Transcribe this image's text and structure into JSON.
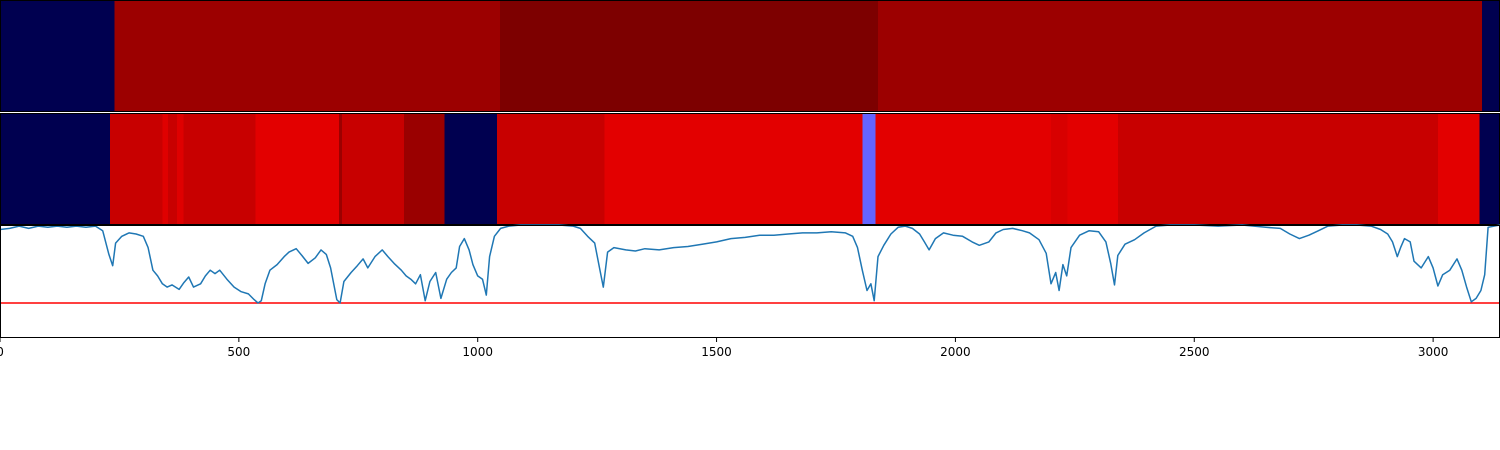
{
  "chart_data": [
    {
      "type": "heatmap",
      "xlim": [
        0,
        3140
      ],
      "segments": [
        {
          "x0": 0,
          "x1": 240,
          "color": "#000050"
        },
        {
          "x0": 240,
          "x1": 1047,
          "color": "#9c0000"
        },
        {
          "x0": 1047,
          "x1": 1838,
          "color": "#7d0000"
        },
        {
          "x0": 1838,
          "x1": 3102,
          "color": "#9c0000"
        },
        {
          "x0": 3102,
          "x1": 3140,
          "color": "#000050"
        }
      ]
    },
    {
      "type": "heatmap",
      "xlim": [
        0,
        3140
      ],
      "segments": [
        {
          "x0": 0,
          "x1": 230,
          "color": "#000050"
        },
        {
          "x0": 230,
          "x1": 340,
          "color": "#c80000"
        },
        {
          "x0": 340,
          "x1": 352,
          "color": "#df0000"
        },
        {
          "x0": 352,
          "x1": 370,
          "color": "#c80000"
        },
        {
          "x0": 370,
          "x1": 384,
          "color": "#df0000"
        },
        {
          "x0": 384,
          "x1": 412,
          "color": "#c80000"
        },
        {
          "x0": 412,
          "x1": 535,
          "color": "#c80000"
        },
        {
          "x0": 535,
          "x1": 710,
          "color": "#e30000"
        },
        {
          "x0": 710,
          "x1": 716,
          "color": "#9c0000"
        },
        {
          "x0": 716,
          "x1": 846,
          "color": "#c80000"
        },
        {
          "x0": 846,
          "x1": 930,
          "color": "#9a0000"
        },
        {
          "x0": 930,
          "x1": 1040,
          "color": "#000050"
        },
        {
          "x0": 1040,
          "x1": 1265,
          "color": "#c80000"
        },
        {
          "x0": 1265,
          "x1": 1805,
          "color": "#e30000"
        },
        {
          "x0": 1805,
          "x1": 1833,
          "color": "#6464ff"
        },
        {
          "x0": 1833,
          "x1": 2200,
          "color": "#e30000"
        },
        {
          "x0": 2200,
          "x1": 2235,
          "color": "#d80000"
        },
        {
          "x0": 2235,
          "x1": 2340,
          "color": "#e30000"
        },
        {
          "x0": 2340,
          "x1": 3010,
          "color": "#c80000"
        },
        {
          "x0": 3010,
          "x1": 3097,
          "color": "#e30000"
        },
        {
          "x0": 3097,
          "x1": 3140,
          "color": "#000050"
        }
      ]
    },
    {
      "type": "line",
      "xlim": [
        0,
        3140
      ],
      "ylim": [
        0,
        1
      ],
      "ticks": [
        "0",
        "500",
        "1000",
        "1500",
        "2000",
        "2500",
        "3000"
      ],
      "tick_values": [
        0,
        500,
        1000,
        1500,
        2000,
        2500,
        3000
      ],
      "threshold": 0.31,
      "line_color": "#1f77b4",
      "threshold_color": "#ff0000",
      "points": [
        [
          0,
          0.96
        ],
        [
          20,
          0.97
        ],
        [
          40,
          0.99
        ],
        [
          60,
          0.97
        ],
        [
          80,
          0.99
        ],
        [
          100,
          0.98
        ],
        [
          120,
          0.99
        ],
        [
          140,
          0.98
        ],
        [
          160,
          0.99
        ],
        [
          180,
          0.98
        ],
        [
          200,
          0.99
        ],
        [
          215,
          0.95
        ],
        [
          228,
          0.74
        ],
        [
          236,
          0.64
        ],
        [
          242,
          0.84
        ],
        [
          255,
          0.9
        ],
        [
          270,
          0.93
        ],
        [
          285,
          0.92
        ],
        [
          300,
          0.9
        ],
        [
          310,
          0.8
        ],
        [
          320,
          0.6
        ],
        [
          330,
          0.55
        ],
        [
          340,
          0.48
        ],
        [
          350,
          0.45
        ],
        [
          360,
          0.47
        ],
        [
          375,
          0.43
        ],
        [
          385,
          0.49
        ],
        [
          395,
          0.54
        ],
        [
          405,
          0.45
        ],
        [
          420,
          0.48
        ],
        [
          430,
          0.55
        ],
        [
          440,
          0.6
        ],
        [
          450,
          0.57
        ],
        [
          460,
          0.6
        ],
        [
          475,
          0.52
        ],
        [
          490,
          0.45
        ],
        [
          505,
          0.41
        ],
        [
          520,
          0.39
        ],
        [
          532,
          0.34
        ],
        [
          540,
          0.31
        ],
        [
          547,
          0.33
        ],
        [
          555,
          0.48
        ],
        [
          565,
          0.6
        ],
        [
          580,
          0.65
        ],
        [
          595,
          0.72
        ],
        [
          605,
          0.76
        ],
        [
          620,
          0.79
        ],
        [
          632,
          0.73
        ],
        [
          645,
          0.66
        ],
        [
          660,
          0.71
        ],
        [
          672,
          0.78
        ],
        [
          683,
          0.74
        ],
        [
          692,
          0.62
        ],
        [
          705,
          0.34
        ],
        [
          712,
          0.31
        ],
        [
          720,
          0.5
        ],
        [
          735,
          0.58
        ],
        [
          748,
          0.64
        ],
        [
          760,
          0.7
        ],
        [
          770,
          0.62
        ],
        [
          785,
          0.72
        ],
        [
          800,
          0.78
        ],
        [
          812,
          0.72
        ],
        [
          825,
          0.66
        ],
        [
          840,
          0.6
        ],
        [
          850,
          0.55
        ],
        [
          860,
          0.52
        ],
        [
          870,
          0.48
        ],
        [
          880,
          0.56
        ],
        [
          890,
          0.33
        ],
        [
          900,
          0.5
        ],
        [
          912,
          0.58
        ],
        [
          923,
          0.35
        ],
        [
          935,
          0.52
        ],
        [
          945,
          0.58
        ],
        [
          955,
          0.62
        ],
        [
          962,
          0.81
        ],
        [
          972,
          0.88
        ],
        [
          982,
          0.78
        ],
        [
          990,
          0.65
        ],
        [
          1000,
          0.55
        ],
        [
          1010,
          0.52
        ],
        [
          1018,
          0.38
        ],
        [
          1025,
          0.72
        ],
        [
          1035,
          0.9
        ],
        [
          1048,
          0.97
        ],
        [
          1065,
          0.99
        ],
        [
          1090,
          1.0
        ],
        [
          1130,
          1.0
        ],
        [
          1170,
          1.0
        ],
        [
          1200,
          0.99
        ],
        [
          1215,
          0.97
        ],
        [
          1230,
          0.9
        ],
        [
          1245,
          0.84
        ],
        [
          1255,
          0.62
        ],
        [
          1263,
          0.45
        ],
        [
          1272,
          0.76
        ],
        [
          1285,
          0.8
        ],
        [
          1310,
          0.78
        ],
        [
          1330,
          0.77
        ],
        [
          1350,
          0.79
        ],
        [
          1380,
          0.78
        ],
        [
          1410,
          0.8
        ],
        [
          1440,
          0.81
        ],
        [
          1470,
          0.83
        ],
        [
          1500,
          0.85
        ],
        [
          1530,
          0.88
        ],
        [
          1560,
          0.89
        ],
        [
          1590,
          0.91
        ],
        [
          1620,
          0.91
        ],
        [
          1650,
          0.92
        ],
        [
          1680,
          0.93
        ],
        [
          1710,
          0.93
        ],
        [
          1740,
          0.94
        ],
        [
          1770,
          0.93
        ],
        [
          1785,
          0.9
        ],
        [
          1795,
          0.8
        ],
        [
          1805,
          0.6
        ],
        [
          1815,
          0.42
        ],
        [
          1823,
          0.48
        ],
        [
          1830,
          0.33
        ],
        [
          1838,
          0.72
        ],
        [
          1850,
          0.82
        ],
        [
          1865,
          0.92
        ],
        [
          1880,
          0.98
        ],
        [
          1895,
          0.99
        ],
        [
          1910,
          0.97
        ],
        [
          1925,
          0.92
        ],
        [
          1935,
          0.85
        ],
        [
          1945,
          0.78
        ],
        [
          1958,
          0.88
        ],
        [
          1975,
          0.93
        ],
        [
          1995,
          0.91
        ],
        [
          2015,
          0.9
        ],
        [
          2035,
          0.85
        ],
        [
          2050,
          0.82
        ],
        [
          2070,
          0.85
        ],
        [
          2085,
          0.93
        ],
        [
          2100,
          0.96
        ],
        [
          2120,
          0.97
        ],
        [
          2140,
          0.95
        ],
        [
          2155,
          0.93
        ],
        [
          2175,
          0.87
        ],
        [
          2190,
          0.75
        ],
        [
          2200,
          0.48
        ],
        [
          2210,
          0.58
        ],
        [
          2217,
          0.42
        ],
        [
          2225,
          0.65
        ],
        [
          2233,
          0.55
        ],
        [
          2242,
          0.8
        ],
        [
          2260,
          0.91
        ],
        [
          2280,
          0.95
        ],
        [
          2300,
          0.94
        ],
        [
          2315,
          0.85
        ],
        [
          2325,
          0.66
        ],
        [
          2333,
          0.47
        ],
        [
          2340,
          0.73
        ],
        [
          2355,
          0.83
        ],
        [
          2375,
          0.87
        ],
        [
          2395,
          0.93
        ],
        [
          2420,
          0.99
        ],
        [
          2450,
          1.0
        ],
        [
          2500,
          1.0
        ],
        [
          2550,
          0.99
        ],
        [
          2600,
          1.0
        ],
        [
          2650,
          0.98
        ],
        [
          2680,
          0.97
        ],
        [
          2700,
          0.92
        ],
        [
          2720,
          0.88
        ],
        [
          2740,
          0.91
        ],
        [
          2760,
          0.95
        ],
        [
          2780,
          0.99
        ],
        [
          2810,
          1.0
        ],
        [
          2840,
          1.0
        ],
        [
          2870,
          0.99
        ],
        [
          2890,
          0.96
        ],
        [
          2905,
          0.92
        ],
        [
          2915,
          0.85
        ],
        [
          2925,
          0.72
        ],
        [
          2932,
          0.8
        ],
        [
          2940,
          0.88
        ],
        [
          2952,
          0.85
        ],
        [
          2960,
          0.68
        ],
        [
          2975,
          0.62
        ],
        [
          2990,
          0.72
        ],
        [
          3000,
          0.62
        ],
        [
          3010,
          0.46
        ],
        [
          3020,
          0.56
        ],
        [
          3035,
          0.6
        ],
        [
          3050,
          0.7
        ],
        [
          3060,
          0.6
        ],
        [
          3070,
          0.45
        ],
        [
          3080,
          0.32
        ],
        [
          3090,
          0.35
        ],
        [
          3100,
          0.42
        ],
        [
          3108,
          0.56
        ],
        [
          3115,
          0.98
        ],
        [
          3140,
          1.0
        ]
      ]
    }
  ]
}
